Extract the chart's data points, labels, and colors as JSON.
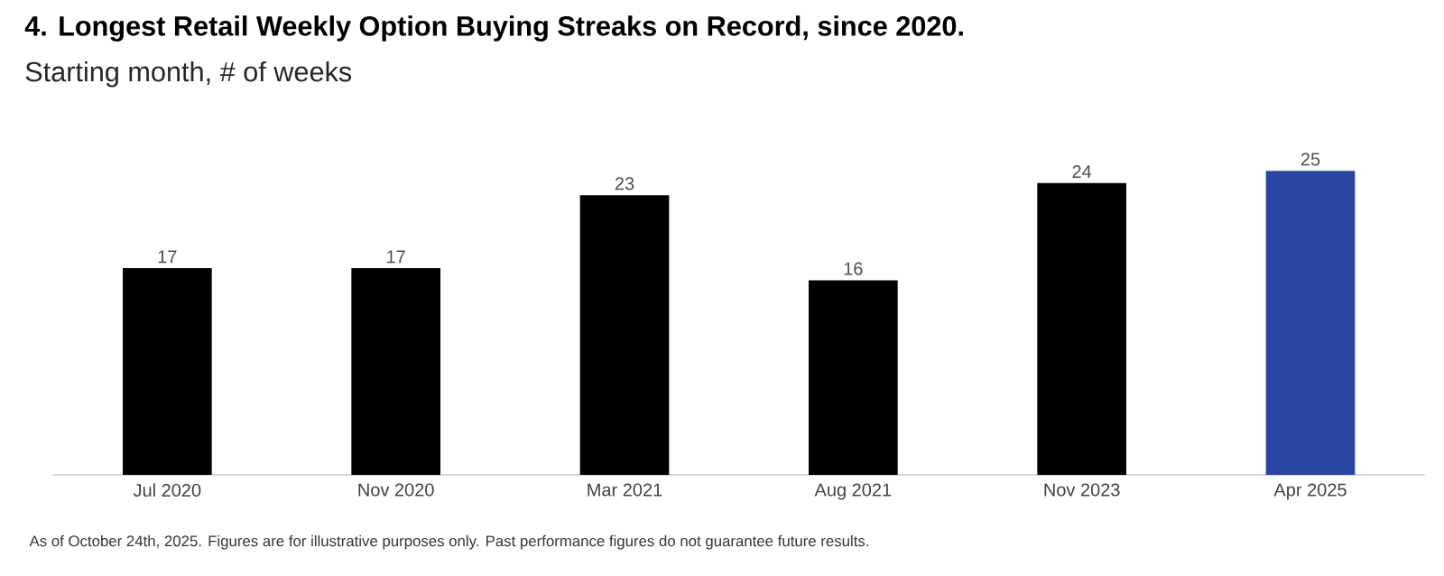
{
  "chart_data": {
    "type": "bar",
    "title": "4. Longest Retail Weekly Option Buying Streaks on Record, since 2020.",
    "subtitle": "Starting month, # of weeks",
    "categories": [
      "Jul 2020",
      "Nov 2020",
      "Mar 2021",
      "Aug 2021",
      "Nov 2023",
      "Apr 2025"
    ],
    "values": [
      17,
      17,
      23,
      16,
      24,
      25
    ],
    "colors": [
      "#000000",
      "#000000",
      "#000000",
      "#000000",
      "#000000",
      "#2a45a3"
    ],
    "data_labels": true,
    "annotations": [
      "As of October 24th, 2025. Figures are for illustrative purposes only. Past performance figures do not guarantee future results."
    ]
  }
}
